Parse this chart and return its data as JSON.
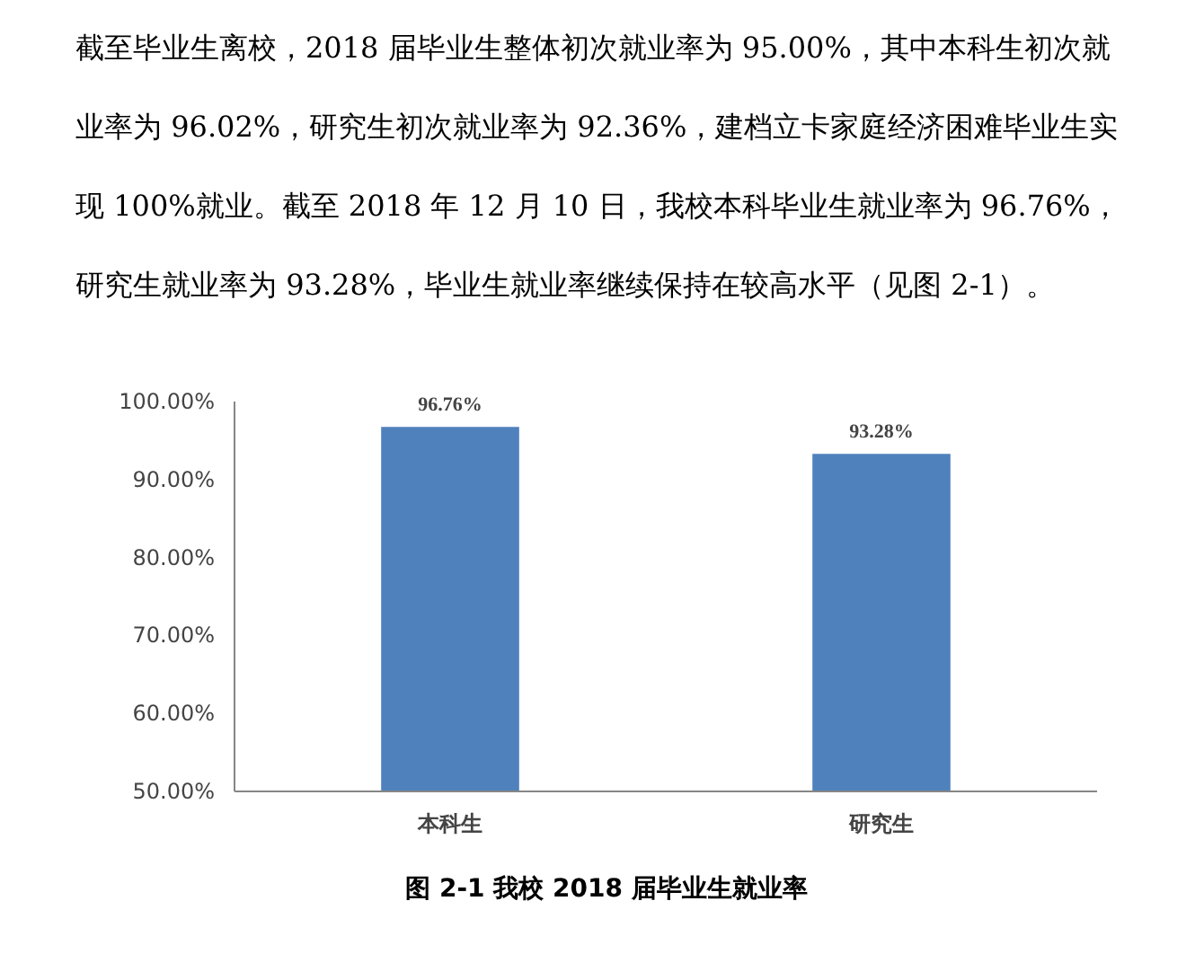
{
  "chart_data": {
    "type": "bar",
    "title": "图 2-1 我校 2018 届毕业生就业率",
    "annotations": [
      "截至毕业生离校，2018 届毕业生整体初次就业率为 95.00%，其中本科生初次就业率为 96.02%，研究生初次就业率为 92.36%，建档立卡家庭经济困难毕业生实现 100%就业。截至 2018 年 12 月 10 日，我校本科毕业生就业率为 96.76%，研究生就业率为 93.28%，毕业生就业率继续保持在较高水平（见图 2-1）。"
    ],
    "categories": [
      "本科生",
      "研究生"
    ],
    "values": [
      96.76,
      93.28
    ],
    "value_labels": [
      "96.76%",
      "93.28%"
    ],
    "color": "#4f81bd",
    "ylim": [
      50,
      100
    ],
    "yticks": [
      {
        "value": 50,
        "label": "50.00%"
      },
      {
        "value": 60,
        "label": "60.00%"
      },
      {
        "value": 70,
        "label": "70.00%"
      },
      {
        "value": 80,
        "label": "80.00%"
      },
      {
        "value": 90,
        "label": "90.00%"
      },
      {
        "value": 100,
        "label": "100.00%"
      }
    ],
    "grid": false
  }
}
